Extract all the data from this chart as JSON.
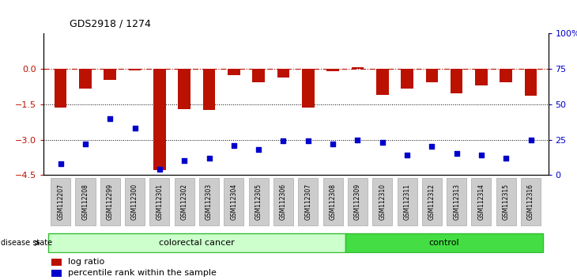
{
  "title": "GDS2918 / 1274",
  "samples": [
    "GSM112207",
    "GSM112208",
    "GSM112299",
    "GSM112300",
    "GSM112301",
    "GSM112302",
    "GSM112303",
    "GSM112304",
    "GSM112305",
    "GSM112306",
    "GSM112307",
    "GSM112308",
    "GSM112309",
    "GSM112310",
    "GSM112311",
    "GSM112312",
    "GSM112313",
    "GSM112314",
    "GSM112315",
    "GSM112316"
  ],
  "log_ratio": [
    -1.65,
    -0.85,
    -0.45,
    -0.05,
    -4.3,
    -1.7,
    -1.75,
    -0.25,
    -0.55,
    -0.35,
    -1.65,
    -0.08,
    0.08,
    -1.1,
    -0.85,
    -0.55,
    -1.05,
    -0.7,
    -0.55,
    -1.15
  ],
  "percentile_rank": [
    8,
    22,
    40,
    33,
    4,
    10,
    12,
    21,
    18,
    24,
    24,
    22,
    25,
    23,
    14,
    20,
    15,
    14,
    12,
    25
  ],
  "colorectal_cancer_count": 12,
  "control_count": 8,
  "bar_color": "#bb1100",
  "dot_color": "#0000cc",
  "ylim_left": [
    -4.5,
    1.5
  ],
  "ylim_right": [
    0,
    100
  ],
  "yticks_left": [
    0,
    -1.5,
    -3.0,
    -4.5
  ],
  "yticks_right": [
    0,
    25,
    50,
    75,
    100
  ],
  "colorectal_color": "#ccffcc",
  "control_color": "#44dd44",
  "label_bar": "log ratio",
  "label_dot": "percentile rank within the sample"
}
